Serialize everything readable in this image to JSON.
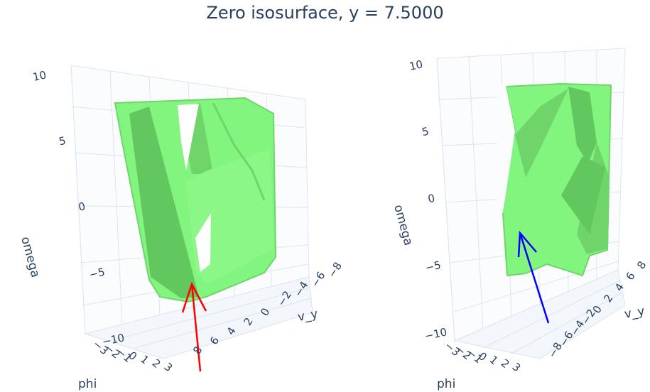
{
  "title": "Zero isosurface, y =  7.5000",
  "colors": {
    "surface": "#82f57e",
    "surface_shade": "#62c75f",
    "grid": "#dde4ef",
    "axis_text": "#2a3f5f",
    "arrow_left": "#ff0000",
    "arrow_right": "#0000ff"
  },
  "chart_data": [
    {
      "type": "isosurface-3d",
      "subplot": "left",
      "zlabel": "omega",
      "zticks": [
        "10",
        "5",
        "0",
        "−5",
        "−10"
      ],
      "xlabel": "phi",
      "xticks": [
        "−3",
        "−2",
        "−1",
        "0",
        "1",
        "2",
        "3"
      ],
      "ylabel": "v_y",
      "yticks": [
        "8",
        "6",
        "4",
        "2",
        "0",
        "−2",
        "−4",
        "−6",
        "−8"
      ],
      "surface_color": "#82f57e",
      "arrow_color": "#ff0000"
    },
    {
      "type": "isosurface-3d",
      "subplot": "right",
      "zlabel": "omega",
      "zticks": [
        "10",
        "5",
        "0",
        "−5",
        "−10"
      ],
      "xlabel": "phi",
      "xticks": [
        "−3",
        "−2",
        "−1",
        "0",
        "1",
        "2",
        "3"
      ],
      "ylabel": "v_y",
      "yticks": [
        "−8",
        "−6",
        "−4",
        "−2",
        "0",
        "2",
        "4",
        "6",
        "8"
      ],
      "surface_color": "#82f57e",
      "arrow_color": "#0000ff"
    }
  ]
}
